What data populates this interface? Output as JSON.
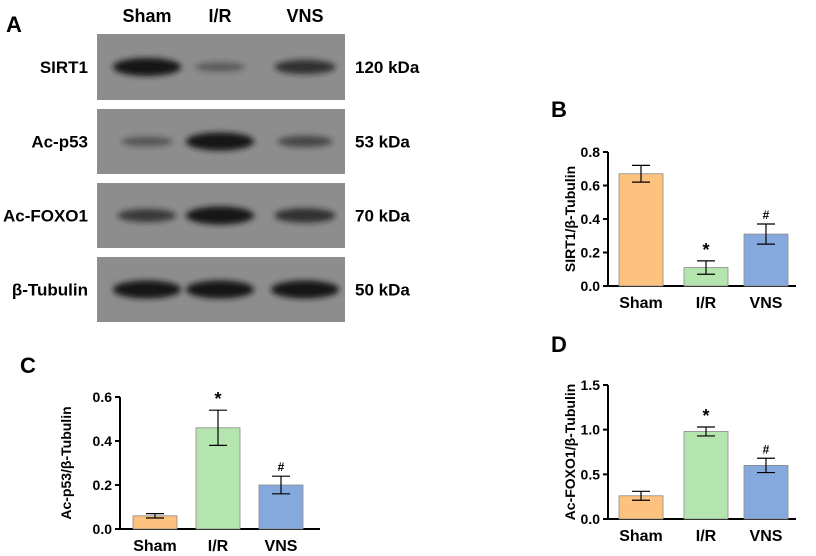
{
  "colors": {
    "sham": "#FCC27E",
    "ir": "#B5E5AE",
    "vns": "#86A9DD",
    "blot_bg": "#8d8d8d",
    "band": "#141414"
  },
  "western_blot": {
    "panel_label": "A",
    "lanes": [
      "Sham",
      "I/R",
      "VNS"
    ],
    "rows": [
      {
        "protein": "SIRT1",
        "kda": "120 kDa",
        "intensity": [
          1.0,
          0.25,
          0.7
        ]
      },
      {
        "protein": "Ac-p53",
        "kda": "53 kDa",
        "intensity": [
          0.3,
          1.0,
          0.45
        ]
      },
      {
        "protein": "Ac-FOXO1",
        "kda": "70 kDa",
        "intensity": [
          0.6,
          1.0,
          0.7
        ]
      },
      {
        "protein": "β-Tubulin",
        "kda": "50 kDa",
        "intensity": [
          1.0,
          1.0,
          1.0
        ]
      }
    ]
  },
  "chart_data": [
    {
      "panel": "B",
      "type": "bar",
      "categories": [
        "Sham",
        "I/R",
        "VNS"
      ],
      "values": [
        0.67,
        0.11,
        0.31
      ],
      "errors": [
        0.05,
        0.04,
        0.06
      ],
      "marks": [
        "",
        "*",
        "#"
      ],
      "ylabel": "SIRT1/β-Tubulin",
      "ylim": [
        0,
        0.8
      ],
      "yticks": [
        "0.0",
        "0.2",
        "0.4",
        "0.6",
        "0.8"
      ]
    },
    {
      "panel": "C",
      "type": "bar",
      "categories": [
        "Sham",
        "I/R",
        "VNS"
      ],
      "values": [
        0.06,
        0.46,
        0.2
      ],
      "errors": [
        0.01,
        0.08,
        0.04
      ],
      "marks": [
        "",
        "*",
        "#"
      ],
      "ylabel": "Ac-p53/β-Tubulin",
      "ylim": [
        0,
        0.6
      ],
      "yticks": [
        "0.0",
        "0.2",
        "0.4",
        "0.6"
      ]
    },
    {
      "panel": "D",
      "type": "bar",
      "categories": [
        "Sham",
        "I/R",
        "VNS"
      ],
      "values": [
        0.26,
        0.98,
        0.6
      ],
      "errors": [
        0.05,
        0.05,
        0.08
      ],
      "marks": [
        "",
        "*",
        "#"
      ],
      "ylabel": "Ac-FOXO1/β-Tubulin",
      "ylim": [
        0,
        1.5
      ],
      "yticks": [
        "0.0",
        "0.5",
        "1.0",
        "1.5"
      ]
    }
  ]
}
